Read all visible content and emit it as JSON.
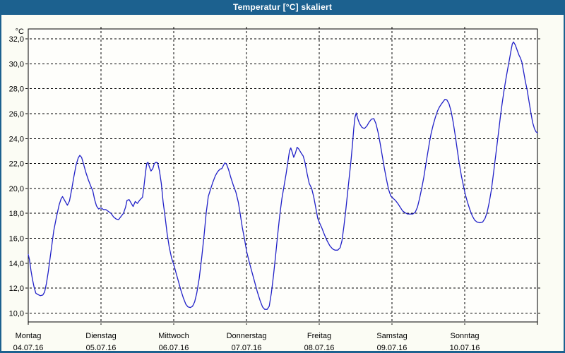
{
  "window": {
    "title": "Temperatur [°C] skaliert"
  },
  "colors": {
    "titlebar_bg": "#1c618f",
    "titlebar_text": "#ffffff",
    "window_border": "#1c618f",
    "window_bg": "#fbfcf4",
    "plot_bg": "#fefefb",
    "grid": "#000000",
    "axis": "#000000",
    "line": "#2121c8",
    "label_text": "#000000"
  },
  "chart_data": {
    "type": "line",
    "title": "Temperatur [°C] skaliert",
    "xlabel": "",
    "ylabel": "°C",
    "y_unit_label": "°C",
    "grid": "dashed, both axes",
    "legend_position": "none",
    "ylim": [
      9.3,
      32.8
    ],
    "y_ticks": [
      32,
      30,
      28,
      26,
      24,
      22,
      20,
      18,
      16,
      14,
      12,
      10
    ],
    "y_tick_labels": [
      "32,0",
      "30,0",
      "28,0",
      "26,0",
      "24,0",
      "22,0",
      "20,0",
      "18,0",
      "16,0",
      "14,0",
      "12,0",
      "10,0"
    ],
    "x_hours_range": [
      0,
      168
    ],
    "x_days": [
      {
        "weekday": "Montag",
        "date": "04.07.16"
      },
      {
        "weekday": "Dienstag",
        "date": "05.07.16"
      },
      {
        "weekday": "Mittwoch",
        "date": "06.07.16"
      },
      {
        "weekday": "Donnerstag",
        "date": "07.07.16"
      },
      {
        "weekday": "Freitag",
        "date": "08.07.16"
      },
      {
        "weekday": "Samstag",
        "date": "09.07.16"
      },
      {
        "weekday": "Sonntag",
        "date": "10.07.16"
      }
    ],
    "series": [
      {
        "name": "Temperatur [°C]",
        "color": "#2121c8",
        "x_unit": "hours_since_monday_00:00",
        "points": [
          [
            0,
            14.7
          ],
          [
            0.4,
            14.3
          ],
          [
            0.9,
            13.4
          ],
          [
            1.4,
            12.7
          ],
          [
            1.9,
            12.1
          ],
          [
            2.5,
            11.6
          ],
          [
            3.1,
            11.5
          ],
          [
            4,
            11.4
          ],
          [
            4.8,
            11.45
          ],
          [
            5.4,
            11.7
          ],
          [
            6,
            12.4
          ],
          [
            6.6,
            13.3
          ],
          [
            7.2,
            14.4
          ],
          [
            7.8,
            15.5
          ],
          [
            8.4,
            16.6
          ],
          [
            9.3,
            17.7
          ],
          [
            10.2,
            18.7
          ],
          [
            10.8,
            19.15
          ],
          [
            11.3,
            19.35
          ],
          [
            12.1,
            19.0
          ],
          [
            12.9,
            18.65
          ],
          [
            13.6,
            19.0
          ],
          [
            14.3,
            19.9
          ],
          [
            15.1,
            21.0
          ],
          [
            15.8,
            21.9
          ],
          [
            16.5,
            22.45
          ],
          [
            17,
            22.65
          ],
          [
            17.6,
            22.5
          ],
          [
            18.2,
            22.0
          ],
          [
            19,
            21.3
          ],
          [
            19.8,
            20.7
          ],
          [
            20.6,
            20.2
          ],
          [
            21.3,
            19.8
          ],
          [
            21.9,
            19.1
          ],
          [
            22.5,
            18.6
          ],
          [
            23.2,
            18.35
          ],
          [
            24,
            18.45
          ],
          [
            24.8,
            18.3
          ],
          [
            25.6,
            18.3
          ],
          [
            26.5,
            18.15
          ],
          [
            27.3,
            18.0
          ],
          [
            28.2,
            17.7
          ],
          [
            29,
            17.55
          ],
          [
            29.8,
            17.5
          ],
          [
            30.6,
            17.75
          ],
          [
            31.4,
            18.0
          ],
          [
            32.1,
            18.5
          ],
          [
            32.6,
            19.05
          ],
          [
            33.3,
            19.1
          ],
          [
            34,
            18.8
          ],
          [
            34.6,
            18.55
          ],
          [
            35.3,
            18.95
          ],
          [
            36,
            18.8
          ],
          [
            36.9,
            19.1
          ],
          [
            37.7,
            19.3
          ],
          [
            38.2,
            20.2
          ],
          [
            38.7,
            21.3
          ],
          [
            39.1,
            22.0
          ],
          [
            39.5,
            22.1
          ],
          [
            40,
            21.7
          ],
          [
            40.5,
            21.4
          ],
          [
            41.1,
            21.6
          ],
          [
            41.6,
            22.0
          ],
          [
            42.2,
            22.1
          ],
          [
            42.7,
            22.05
          ],
          [
            43.3,
            21.4
          ],
          [
            43.9,
            20.4
          ],
          [
            44.5,
            18.9
          ],
          [
            45.1,
            17.8
          ],
          [
            45.8,
            16.4
          ],
          [
            46.5,
            15.3
          ],
          [
            47.3,
            14.4
          ],
          [
            48,
            13.9
          ],
          [
            48.8,
            13.2
          ],
          [
            49.6,
            12.5
          ],
          [
            50.4,
            11.8
          ],
          [
            51.2,
            11.2
          ],
          [
            52,
            10.7
          ],
          [
            52.7,
            10.5
          ],
          [
            53.5,
            10.45
          ],
          [
            54.2,
            10.55
          ],
          [
            54.9,
            10.9
          ],
          [
            55.6,
            11.6
          ],
          [
            56.4,
            12.8
          ],
          [
            57.2,
            14.4
          ],
          [
            58,
            16.2
          ],
          [
            58.7,
            18.0
          ],
          [
            59.4,
            19.35
          ],
          [
            60.1,
            19.9
          ],
          [
            60.9,
            20.5
          ],
          [
            61.7,
            21.0
          ],
          [
            62.5,
            21.35
          ],
          [
            63.3,
            21.55
          ],
          [
            63.9,
            21.6
          ],
          [
            64.4,
            21.85
          ],
          [
            64.9,
            22.05
          ],
          [
            65.4,
            21.95
          ],
          [
            66.1,
            21.5
          ],
          [
            66.8,
            20.9
          ],
          [
            67.6,
            20.3
          ],
          [
            68.5,
            19.7
          ],
          [
            69.3,
            18.9
          ],
          [
            69.9,
            18.0
          ],
          [
            70.6,
            16.9
          ],
          [
            71.3,
            16.0
          ],
          [
            72.1,
            14.9
          ],
          [
            72.9,
            14.1
          ],
          [
            73.8,
            13.3
          ],
          [
            74.7,
            12.5
          ],
          [
            75.6,
            11.7
          ],
          [
            76.5,
            11.0
          ],
          [
            77.3,
            10.5
          ],
          [
            78,
            10.3
          ],
          [
            78.8,
            10.3
          ],
          [
            79.5,
            10.55
          ],
          [
            80.2,
            11.6
          ],
          [
            80.9,
            13.0
          ],
          [
            81.6,
            14.6
          ],
          [
            82.3,
            16.3
          ],
          [
            83,
            17.9
          ],
          [
            83.7,
            19.2
          ],
          [
            84.4,
            20.2
          ],
          [
            85.1,
            21.2
          ],
          [
            85.7,
            22.2
          ],
          [
            86.2,
            23.0
          ],
          [
            86.6,
            23.25
          ],
          [
            87.1,
            22.9
          ],
          [
            87.6,
            22.5
          ],
          [
            88.1,
            22.8
          ],
          [
            88.7,
            23.3
          ],
          [
            89.3,
            23.15
          ],
          [
            90,
            22.85
          ],
          [
            90.7,
            22.6
          ],
          [
            91.3,
            22.1
          ],
          [
            92,
            21.2
          ],
          [
            92.7,
            20.4
          ],
          [
            93.5,
            20.0
          ],
          [
            94.2,
            19.3
          ],
          [
            94.9,
            18.4
          ],
          [
            95.5,
            17.6
          ],
          [
            96.1,
            17.25
          ],
          [
            96.9,
            16.8
          ],
          [
            97.7,
            16.3
          ],
          [
            98.6,
            15.8
          ],
          [
            99.5,
            15.4
          ],
          [
            100.4,
            15.15
          ],
          [
            101.2,
            15.05
          ],
          [
            102.1,
            15.05
          ],
          [
            102.9,
            15.25
          ],
          [
            103.5,
            15.8
          ],
          [
            104.1,
            16.9
          ],
          [
            104.7,
            18.1
          ],
          [
            105.3,
            19.5
          ],
          [
            105.9,
            20.9
          ],
          [
            106.5,
            22.3
          ],
          [
            107,
            23.6
          ],
          [
            107.4,
            24.8
          ],
          [
            107.8,
            25.7
          ],
          [
            108.2,
            26.05
          ],
          [
            108.7,
            25.6
          ],
          [
            109.3,
            25.2
          ],
          [
            110.1,
            24.9
          ],
          [
            110.9,
            24.8
          ],
          [
            111.7,
            25.0
          ],
          [
            112.4,
            25.3
          ],
          [
            113.2,
            25.55
          ],
          [
            114,
            25.6
          ],
          [
            114.7,
            25.2
          ],
          [
            115.4,
            24.5
          ],
          [
            116.1,
            23.6
          ],
          [
            116.8,
            22.6
          ],
          [
            117.5,
            21.6
          ],
          [
            118.2,
            20.7
          ],
          [
            118.9,
            19.9
          ],
          [
            119.6,
            19.4
          ],
          [
            120.4,
            19.2
          ],
          [
            121.1,
            19.05
          ],
          [
            121.9,
            18.8
          ],
          [
            122.7,
            18.5
          ],
          [
            123.5,
            18.2
          ],
          [
            124.3,
            18.05
          ],
          [
            125.1,
            17.95
          ],
          [
            126,
            17.95
          ],
          [
            126.9,
            17.95
          ],
          [
            127.7,
            18.1
          ],
          [
            128.4,
            18.5
          ],
          [
            129.1,
            19.2
          ],
          [
            129.8,
            20.0
          ],
          [
            130.5,
            20.9
          ],
          [
            131.1,
            21.8
          ],
          [
            131.7,
            22.7
          ],
          [
            132.3,
            23.6
          ],
          [
            132.9,
            24.4
          ],
          [
            133.6,
            25.1
          ],
          [
            134.3,
            25.7
          ],
          [
            135,
            26.2
          ],
          [
            135.7,
            26.55
          ],
          [
            136.4,
            26.8
          ],
          [
            137,
            27.0
          ],
          [
            137.5,
            27.15
          ],
          [
            138.1,
            27.1
          ],
          [
            138.8,
            26.8
          ],
          [
            139.5,
            26.2
          ],
          [
            140.2,
            25.3
          ],
          [
            140.9,
            24.2
          ],
          [
            141.6,
            23.0
          ],
          [
            142.2,
            22.0
          ],
          [
            142.9,
            21.0
          ],
          [
            143.5,
            20.3
          ],
          [
            144.2,
            19.5
          ],
          [
            144.9,
            18.9
          ],
          [
            145.7,
            18.3
          ],
          [
            146.5,
            17.8
          ],
          [
            147.3,
            17.45
          ],
          [
            148.1,
            17.3
          ],
          [
            149,
            17.25
          ],
          [
            149.9,
            17.3
          ],
          [
            150.7,
            17.6
          ],
          [
            151.4,
            18.1
          ],
          [
            152.1,
            18.9
          ],
          [
            152.8,
            19.9
          ],
          [
            153.4,
            21.0
          ],
          [
            154,
            22.2
          ],
          [
            154.6,
            23.4
          ],
          [
            155.2,
            24.6
          ],
          [
            155.8,
            25.8
          ],
          [
            156.4,
            26.9
          ],
          [
            157,
            27.9
          ],
          [
            157.6,
            28.8
          ],
          [
            158.2,
            29.6
          ],
          [
            158.8,
            30.4
          ],
          [
            159.3,
            31.1
          ],
          [
            159.7,
            31.6
          ],
          [
            160.1,
            31.75
          ],
          [
            160.7,
            31.5
          ],
          [
            161.3,
            31.1
          ],
          [
            161.9,
            30.7
          ],
          [
            162.4,
            30.45
          ],
          [
            162.9,
            30.1
          ],
          [
            163.4,
            29.4
          ],
          [
            164,
            28.6
          ],
          [
            164.6,
            27.9
          ],
          [
            165.2,
            27.0
          ],
          [
            165.8,
            26.1
          ],
          [
            166.4,
            25.3
          ],
          [
            167,
            24.8
          ],
          [
            167.5,
            24.55
          ],
          [
            168,
            24.45
          ]
        ]
      }
    ]
  }
}
